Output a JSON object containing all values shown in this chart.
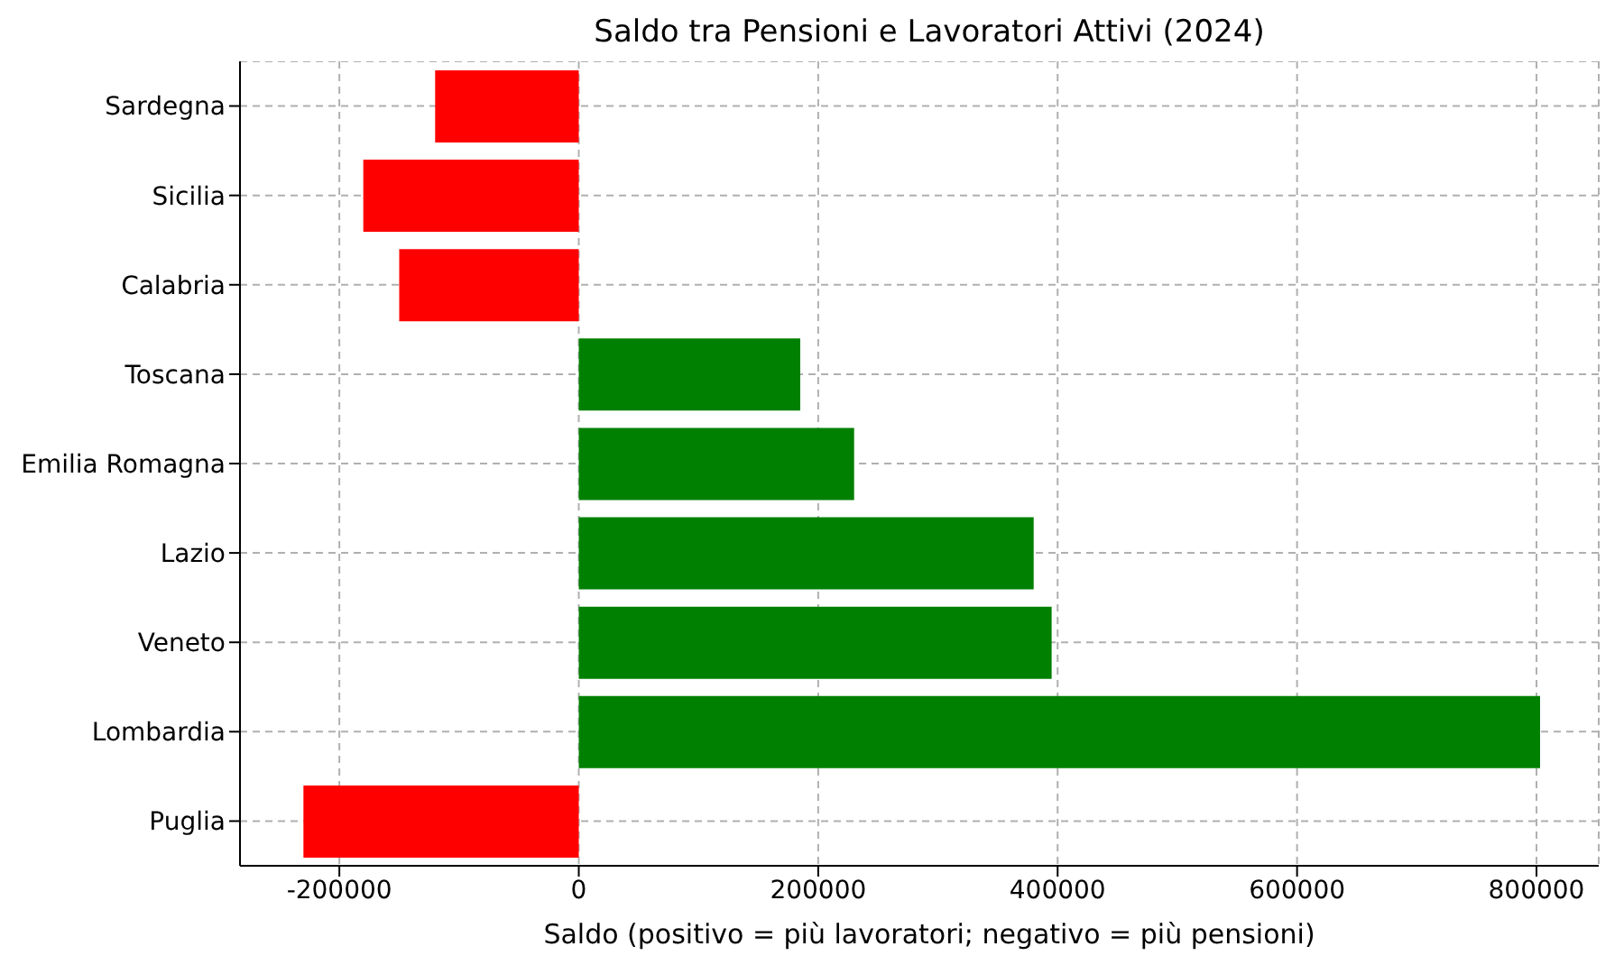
{
  "chart_data": {
    "type": "bar",
    "orientation": "horizontal",
    "title": "Saldo tra Pensioni e Lavoratori Attivi (2024)",
    "xlabel": "Saldo (positivo = più lavoratori; negativo = più pensioni)",
    "categories": [
      "Sardegna",
      "Sicilia",
      "Calabria",
      "Toscana",
      "Emilia Romagna",
      "Lazio",
      "Veneto",
      "Lombardia",
      "Puglia"
    ],
    "values": [
      -120000,
      -180000,
      -150000,
      185000,
      230000,
      380000,
      395000,
      803000,
      -230000
    ],
    "colors": [
      "#ff0000",
      "#ff0000",
      "#ff0000",
      "#008000",
      "#008000",
      "#008000",
      "#008000",
      "#008000",
      "#ff0000"
    ],
    "xlim": [
      -283000,
      852000
    ],
    "xticks": [
      -200000,
      0,
      200000,
      400000,
      600000,
      800000
    ],
    "grid": true
  }
}
